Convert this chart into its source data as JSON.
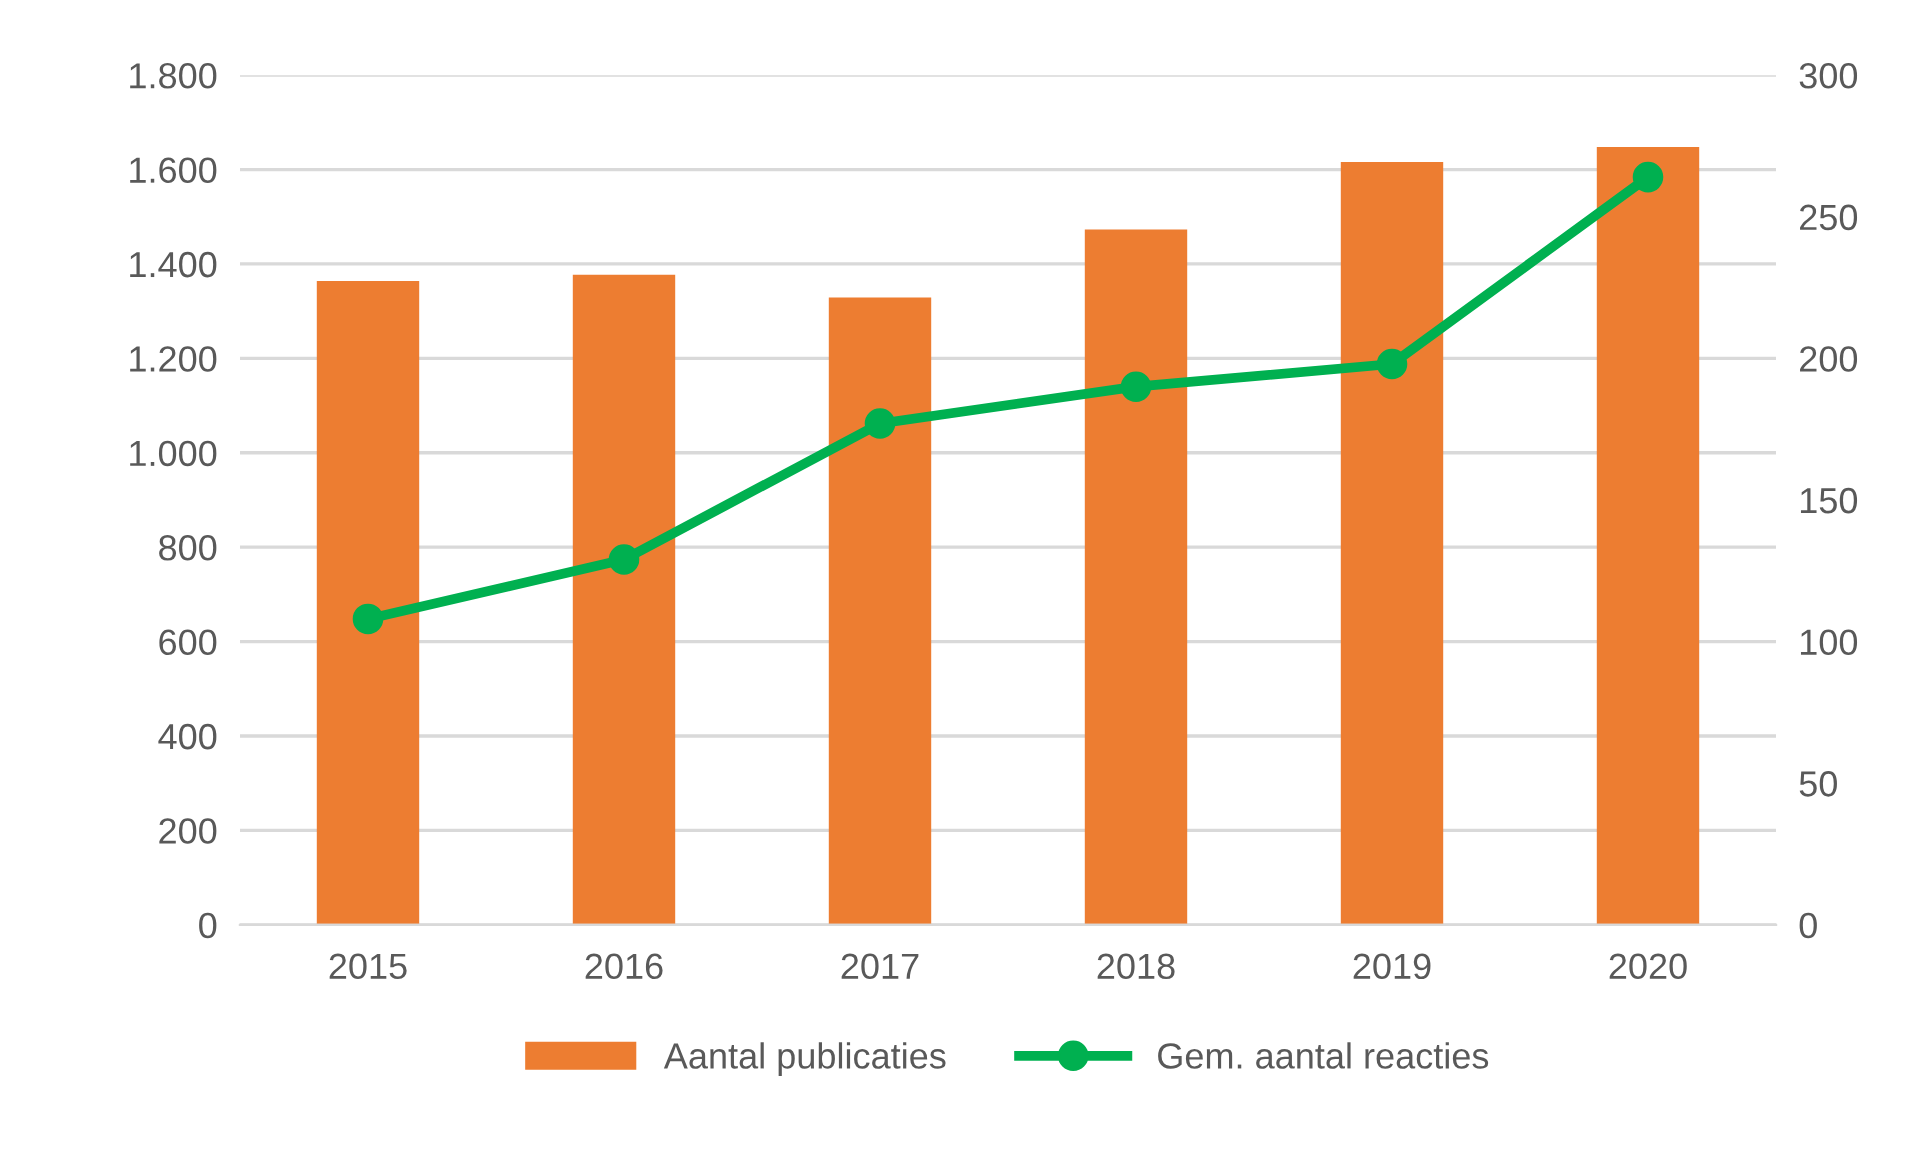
{
  "chart_data": {
    "type": "bar",
    "categories": [
      "2015",
      "2016",
      "2017",
      "2018",
      "2019",
      "2020"
    ],
    "series": [
      {
        "name": "Aantal publicaties",
        "color": "#ed7d31",
        "values": [
          1364,
          1377,
          1329,
          1473,
          1616,
          1648
        ]
      },
      {
        "name": "Gem. aantal reacties",
        "type": "line",
        "axis": "y2",
        "color": "#00b050",
        "marker": "circle",
        "values": [
          108,
          129,
          177,
          190,
          198,
          264
        ]
      }
    ],
    "ylim": [
      0,
      1800
    ],
    "yticks": [
      0,
      {
        "value": 200,
        "label": "200"
      },
      {
        "value": 400,
        "label": "400"
      },
      {
        "value": 600,
        "label": "600"
      },
      {
        "value": 800,
        "label": "800"
      },
      {
        "value": 1000,
        "label": "1.000"
      },
      {
        "value": 1200,
        "label": "1.200"
      },
      {
        "value": 1400,
        "label": "1.400"
      },
      {
        "value": 1600,
        "label": "1.600"
      },
      {
        "value": 1800,
        "label": "1.800"
      }
    ],
    "y2lim": [
      0,
      300
    ],
    "y2ticks": [
      0,
      50,
      100,
      150,
      200,
      250,
      300
    ],
    "grid": "y",
    "legend": "bottom"
  }
}
